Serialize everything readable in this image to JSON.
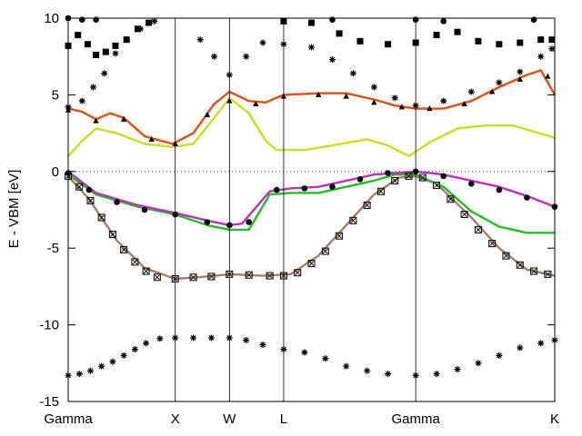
{
  "chart_data": {
    "type": "line",
    "title": "",
    "xlabel": "",
    "ylabel": "E - VBM [eV]",
    "ylim": [
      -15,
      10
    ],
    "yticks": [
      -15,
      -10,
      -5,
      0,
      5,
      10
    ],
    "xlim": [
      0,
      3.5
    ],
    "kpoints": [
      {
        "label": "Gamma",
        "x": 0
      },
      {
        "label": "X",
        "x": 0.77
      },
      {
        "label": "W",
        "x": 1.16
      },
      {
        "label": "L",
        "x": 1.55
      },
      {
        "label": "Gamma",
        "x": 2.5
      },
      {
        "label": "K",
        "x": 3.5
      }
    ],
    "zero_line": {
      "y": 0,
      "style": "dotted"
    },
    "lines": [
      {
        "color": "#a08070",
        "points": [
          [
            0,
            -0.3
          ],
          [
            0.15,
            -1.8
          ],
          [
            0.35,
            -4.5
          ],
          [
            0.55,
            -6.3
          ],
          [
            0.77,
            -7.0
          ],
          [
            1.0,
            -6.85
          ],
          [
            1.16,
            -6.7
          ],
          [
            1.4,
            -6.8
          ],
          [
            1.6,
            -6.7
          ],
          [
            1.8,
            -5.5
          ],
          [
            2.0,
            -3.5
          ],
          [
            2.2,
            -1.5
          ],
          [
            2.38,
            -0.4
          ],
          [
            2.5,
            -0.3
          ],
          [
            2.65,
            -0.8
          ],
          [
            2.9,
            -3.0
          ],
          [
            3.1,
            -5.0
          ],
          [
            3.3,
            -6.4
          ],
          [
            3.5,
            -6.8
          ]
        ]
      },
      {
        "color": "#20c020",
        "points": [
          [
            0,
            -0.2
          ],
          [
            0.2,
            -1.5
          ],
          [
            0.5,
            -2.3
          ],
          [
            0.77,
            -2.8
          ],
          [
            1.0,
            -3.5
          ],
          [
            1.16,
            -3.8
          ],
          [
            1.3,
            -3.8
          ],
          [
            1.45,
            -1.5
          ],
          [
            1.6,
            -1.4
          ],
          [
            1.8,
            -1.4
          ],
          [
            2.0,
            -1.0
          ],
          [
            2.2,
            -0.6
          ],
          [
            2.35,
            -0.2
          ],
          [
            2.5,
            -0.2
          ],
          [
            2.7,
            -1.0
          ],
          [
            2.9,
            -2.6
          ],
          [
            3.1,
            -3.6
          ],
          [
            3.3,
            -4.0
          ],
          [
            3.5,
            -4.0
          ]
        ]
      },
      {
        "color": "#c030c0",
        "points": [
          [
            0,
            0
          ],
          [
            0.2,
            -1.4
          ],
          [
            0.5,
            -2.2
          ],
          [
            0.77,
            -2.7
          ],
          [
            1.0,
            -3.2
          ],
          [
            1.16,
            -3.5
          ],
          [
            1.25,
            -3.4
          ],
          [
            1.45,
            -1.3
          ],
          [
            1.6,
            -1.1
          ],
          [
            1.8,
            -1.0
          ],
          [
            2.0,
            -0.6
          ],
          [
            2.2,
            -0.2
          ],
          [
            2.35,
            -0.1
          ],
          [
            2.5,
            0
          ],
          [
            2.7,
            -0.2
          ],
          [
            2.9,
            -0.6
          ],
          [
            3.1,
            -1.0
          ],
          [
            3.3,
            -1.6
          ],
          [
            3.5,
            -2.3
          ]
        ]
      },
      {
        "color": "#c8e020",
        "points": [
          [
            0,
            1.0
          ],
          [
            0.1,
            2.0
          ],
          [
            0.2,
            2.8
          ],
          [
            0.35,
            2.5
          ],
          [
            0.55,
            1.8
          ],
          [
            0.75,
            1.6
          ],
          [
            0.9,
            1.8
          ],
          [
            1.05,
            3.5
          ],
          [
            1.16,
            4.8
          ],
          [
            1.3,
            3.8
          ],
          [
            1.42,
            2.0
          ],
          [
            1.5,
            1.4
          ],
          [
            1.7,
            1.4
          ],
          [
            1.9,
            1.7
          ],
          [
            2.15,
            2.1
          ],
          [
            2.3,
            1.7
          ],
          [
            2.45,
            1.0
          ],
          [
            2.6,
            1.9
          ],
          [
            2.8,
            2.8
          ],
          [
            3.0,
            3.0
          ],
          [
            3.2,
            3.0
          ],
          [
            3.35,
            2.6
          ],
          [
            3.5,
            2.2
          ]
        ]
      },
      {
        "color": "#e05010",
        "points": [
          [
            0,
            4.1
          ],
          [
            0.1,
            3.9
          ],
          [
            0.2,
            3.4
          ],
          [
            0.3,
            3.8
          ],
          [
            0.4,
            3.5
          ],
          [
            0.55,
            2.3
          ],
          [
            0.75,
            1.8
          ],
          [
            0.9,
            2.5
          ],
          [
            1.05,
            4.4
          ],
          [
            1.16,
            5.2
          ],
          [
            1.3,
            4.6
          ],
          [
            1.42,
            4.5
          ],
          [
            1.55,
            5.0
          ],
          [
            1.8,
            5.1
          ],
          [
            2.0,
            5.1
          ],
          [
            2.2,
            4.7
          ],
          [
            2.35,
            4.3
          ],
          [
            2.5,
            4.1
          ],
          [
            2.7,
            4.1
          ],
          [
            2.9,
            4.6
          ],
          [
            3.1,
            5.5
          ],
          [
            3.3,
            6.3
          ],
          [
            3.4,
            6.6
          ],
          [
            3.5,
            5.0
          ]
        ]
      }
    ],
    "series": [
      {
        "name": "",
        "marker": "square",
        "points": [
          [
            0,
            8.2
          ],
          [
            0.07,
            8.9
          ],
          [
            0.14,
            8.3
          ],
          [
            0.2,
            7.6
          ],
          [
            0.27,
            7.8
          ],
          [
            0.34,
            8.2
          ],
          [
            0.42,
            8.6
          ],
          [
            0.5,
            9.3
          ],
          [
            0.58,
            9.7
          ],
          [
            1.55,
            9.8
          ],
          [
            1.75,
            9.7
          ],
          [
            1.95,
            9.0
          ],
          [
            2.1,
            8.5
          ],
          [
            2.3,
            8.3
          ],
          [
            2.5,
            8.4
          ],
          [
            2.65,
            8.9
          ],
          [
            2.8,
            9.1
          ],
          [
            2.95,
            8.5
          ],
          [
            3.1,
            8.3
          ],
          [
            3.25,
            8.4
          ],
          [
            3.4,
            8.6
          ],
          [
            3.48,
            8.6
          ]
        ]
      },
      {
        "name": "",
        "marker": "star",
        "points": [
          [
            0,
            4.2
          ],
          [
            0.1,
            4.6
          ],
          [
            0.18,
            5.5
          ],
          [
            0.26,
            6.4
          ],
          [
            0.34,
            7.7
          ],
          [
            0.42,
            8.6
          ],
          [
            0.52,
            9.3
          ],
          [
            0.62,
            9.8
          ],
          [
            0.95,
            8.6
          ],
          [
            1.05,
            7.5
          ],
          [
            1.16,
            6.3
          ],
          [
            1.28,
            7.5
          ],
          [
            1.4,
            8.4
          ],
          [
            1.55,
            8.3
          ],
          [
            1.75,
            8.1
          ],
          [
            1.9,
            7.3
          ],
          [
            2.05,
            6.4
          ],
          [
            2.2,
            5.5
          ],
          [
            2.35,
            4.8
          ],
          [
            2.5,
            4.3
          ],
          [
            2.7,
            4.6
          ],
          [
            2.9,
            5.2
          ],
          [
            3.1,
            5.8
          ],
          [
            3.25,
            6.5
          ],
          [
            3.4,
            7.5
          ],
          [
            3.48,
            8.0
          ]
        ]
      },
      {
        "name": "",
        "marker": "triangle",
        "points": [
          [
            0,
            4.0
          ],
          [
            0.2,
            3.3
          ],
          [
            0.4,
            3.4
          ],
          [
            0.6,
            2.1
          ],
          [
            0.77,
            1.8
          ],
          [
            1.0,
            3.7
          ],
          [
            1.16,
            4.6
          ],
          [
            1.35,
            4.4
          ],
          [
            1.55,
            4.9
          ],
          [
            1.8,
            5.0
          ],
          [
            2.0,
            4.9
          ],
          [
            2.2,
            4.5
          ],
          [
            2.4,
            4.2
          ],
          [
            2.6,
            4.1
          ],
          [
            2.85,
            4.4
          ],
          [
            3.05,
            5.2
          ],
          [
            3.25,
            6.0
          ],
          [
            3.45,
            6.2
          ]
        ]
      },
      {
        "name": "",
        "marker": "circle",
        "points": [
          [
            0,
            10.0
          ],
          [
            0.1,
            9.9
          ],
          [
            0.2,
            9.9
          ],
          [
            1.9,
            9.9
          ],
          [
            2.5,
            9.9
          ],
          [
            2.7,
            9.8
          ],
          [
            3.35,
            9.9
          ]
        ]
      },
      {
        "name": "",
        "marker": "star",
        "points": [
          [
            0,
            -13.3
          ],
          [
            0.08,
            -13.2
          ],
          [
            0.16,
            -13.0
          ],
          [
            0.24,
            -12.7
          ],
          [
            0.32,
            -12.4
          ],
          [
            0.4,
            -12.0
          ],
          [
            0.48,
            -11.6
          ],
          [
            0.56,
            -11.2
          ],
          [
            0.66,
            -10.9
          ],
          [
            0.77,
            -10.85
          ],
          [
            0.9,
            -10.85
          ],
          [
            1.03,
            -10.85
          ],
          [
            1.16,
            -10.85
          ],
          [
            1.28,
            -11.0
          ],
          [
            1.4,
            -11.3
          ],
          [
            1.55,
            -11.6
          ],
          [
            1.7,
            -11.8
          ],
          [
            1.85,
            -12.2
          ],
          [
            2.0,
            -12.7
          ],
          [
            2.15,
            -13.0
          ],
          [
            2.3,
            -13.2
          ],
          [
            2.5,
            -13.3
          ],
          [
            2.65,
            -13.2
          ],
          [
            2.8,
            -12.9
          ],
          [
            2.95,
            -12.5
          ],
          [
            3.1,
            -12.0
          ],
          [
            3.25,
            -11.5
          ],
          [
            3.4,
            -11.2
          ],
          [
            3.5,
            -11.0
          ]
        ]
      },
      {
        "name": "",
        "marker": "bullet",
        "points": [
          [
            0,
            -0.1
          ],
          [
            0.15,
            -1.2
          ],
          [
            0.35,
            -2.0
          ],
          [
            0.55,
            -2.5
          ],
          [
            0.77,
            -2.8
          ],
          [
            1.0,
            -3.3
          ],
          [
            1.16,
            -3.5
          ],
          [
            1.3,
            -3.3
          ],
          [
            1.5,
            -1.2
          ],
          [
            1.7,
            -1.1
          ],
          [
            1.9,
            -1.0
          ],
          [
            2.1,
            -0.5
          ],
          [
            2.3,
            -0.1
          ],
          [
            2.5,
            0
          ],
          [
            2.7,
            -0.3
          ],
          [
            2.9,
            -0.8
          ],
          [
            3.1,
            -1.2
          ],
          [
            3.3,
            -1.7
          ],
          [
            3.5,
            -2.3
          ]
        ]
      },
      {
        "name": "",
        "marker": "boxed",
        "points": [
          [
            0,
            -0.3
          ],
          [
            0.08,
            -1.0
          ],
          [
            0.16,
            -1.9
          ],
          [
            0.24,
            -3.0
          ],
          [
            0.32,
            -4.1
          ],
          [
            0.4,
            -5.1
          ],
          [
            0.48,
            -5.9
          ],
          [
            0.56,
            -6.5
          ],
          [
            0.64,
            -6.9
          ],
          [
            0.77,
            -7.0
          ],
          [
            0.9,
            -6.9
          ],
          [
            1.03,
            -6.85
          ],
          [
            1.16,
            -6.7
          ],
          [
            1.3,
            -6.75
          ],
          [
            1.45,
            -6.8
          ],
          [
            1.55,
            -6.8
          ],
          [
            1.65,
            -6.6
          ],
          [
            1.75,
            -6.0
          ],
          [
            1.85,
            -5.2
          ],
          [
            1.95,
            -4.2
          ],
          [
            2.05,
            -3.2
          ],
          [
            2.15,
            -2.2
          ],
          [
            2.25,
            -1.3
          ],
          [
            2.35,
            -0.6
          ],
          [
            2.45,
            -0.3
          ],
          [
            2.55,
            -0.4
          ],
          [
            2.65,
            -0.9
          ],
          [
            2.75,
            -1.8
          ],
          [
            2.85,
            -2.8
          ],
          [
            2.95,
            -3.8
          ],
          [
            3.05,
            -4.7
          ],
          [
            3.15,
            -5.5
          ],
          [
            3.25,
            -6.1
          ],
          [
            3.35,
            -6.5
          ],
          [
            3.45,
            -6.7
          ]
        ]
      }
    ],
    "grid": false,
    "legend": "none"
  }
}
